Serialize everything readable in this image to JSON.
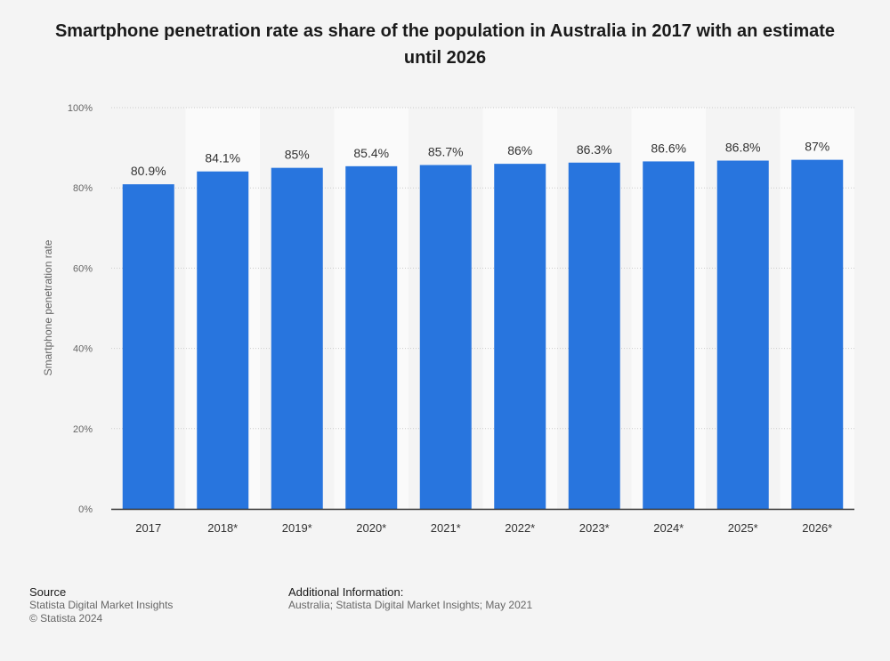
{
  "title": "Smartphone penetration rate as share of the population in Australia in 2017 with an estimate until 2026",
  "colors": {
    "bar": "#2875de",
    "background": "#f4f4f4",
    "stripe": "#fafafa",
    "grid": "#cccccc",
    "axis_line": "#333333",
    "tick_text": "#666666",
    "label_text": "#333333"
  },
  "chart_data": {
    "type": "bar",
    "title": "Smartphone penetration rate as share of the population in Australia in 2017 with an estimate until 2026",
    "categories": [
      "2017",
      "2018*",
      "2019*",
      "2020*",
      "2021*",
      "2022*",
      "2023*",
      "2024*",
      "2025*",
      "2026*"
    ],
    "values": [
      80.9,
      84.1,
      85,
      85.4,
      85.7,
      86,
      86.3,
      86.6,
      86.8,
      87
    ],
    "data_labels": [
      "80.9%",
      "84.1%",
      "85%",
      "85.4%",
      "85.7%",
      "86%",
      "86.3%",
      "86.6%",
      "86.8%",
      "87%"
    ],
    "xlabel": "",
    "ylabel": "Smartphone penetration rate",
    "ylim": [
      0,
      100
    ],
    "yticks": [
      0,
      20,
      40,
      60,
      80,
      100
    ],
    "ytick_labels": [
      "0%",
      "20%",
      "40%",
      "60%",
      "80%",
      "100%"
    ],
    "grid": true,
    "legend": "none"
  },
  "footer": {
    "source_heading": "Source",
    "source_line1": "Statista Digital Market Insights",
    "source_line2": "© Statista 2024",
    "info_heading": "Additional Information:",
    "info_text": "Australia; Statista Digital Market Insights; May 2021"
  }
}
